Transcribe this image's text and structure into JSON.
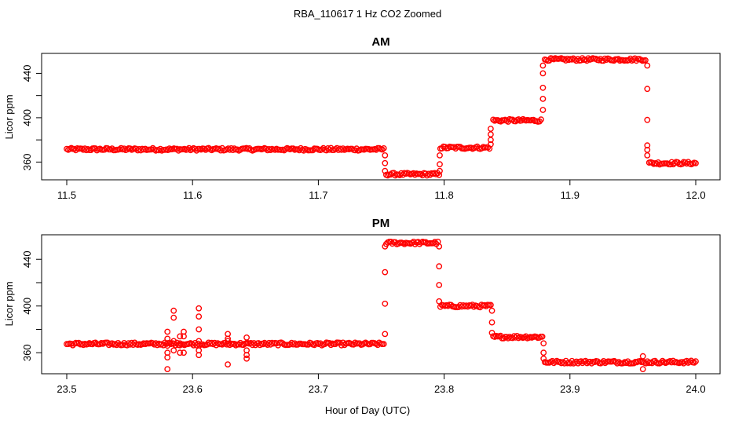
{
  "chart_data": {
    "type": "scatter",
    "title": "RBA_110617  1 Hz CO2 Zoomed",
    "xlabel": "Hour of Day (UTC)",
    "point_color": "#ff0000",
    "panels": [
      {
        "title": "AM",
        "ylabel": "Licor ppm",
        "xlim": [
          11.5,
          12.0
        ],
        "ylim": [
          344,
          458
        ],
        "xticks": [
          11.5,
          11.6,
          11.7,
          11.8,
          11.9,
          12.0
        ],
        "xtick_labels": [
          "11.5",
          "11.6",
          "11.7",
          "11.8",
          "11.9",
          "12.0"
        ],
        "yticks": [
          360,
          380,
          400,
          420,
          440
        ],
        "ytick_labels": [
          "360",
          "",
          "400",
          "",
          "440"
        ],
        "segments": [
          {
            "x0": 11.5,
            "x1": 11.752,
            "y": 371.5
          },
          {
            "x0": 11.754,
            "x1": 11.796,
            "y": 349
          },
          {
            "x0": 11.797,
            "x1": 11.836,
            "y": 373
          },
          {
            "x0": 11.839,
            "x1": 11.877,
            "y": 397.5
          },
          {
            "x0": 11.88,
            "x1": 11.96,
            "y": 452.5
          },
          {
            "x0": 11.963,
            "x1": 12.0,
            "y": 359
          }
        ],
        "transitions": [
          {
            "x": 11.753,
            "y": [
              366,
              359,
              352
            ]
          },
          {
            "x": 11.7965,
            "y": [
              352,
              358,
              366
            ]
          },
          {
            "x": 11.837,
            "y": [
              376,
              380,
              385,
              390
            ]
          },
          {
            "x": 11.8785,
            "y": [
              407,
              417,
              427,
              440,
              447
            ]
          },
          {
            "x": 11.9615,
            "y": [
              447,
              426,
              398,
              375,
              371,
              366
            ]
          }
        ]
      },
      {
        "title": "PM",
        "ylabel": "Licor ppm",
        "xlim": [
          23.5,
          24.0
        ],
        "ylim": [
          342,
          461
        ],
        "xticks": [
          23.5,
          23.6,
          23.7,
          23.8,
          23.9,
          24.0
        ],
        "xtick_labels": [
          "23.5",
          "23.6",
          "23.7",
          "23.8",
          "23.9",
          "24.0"
        ],
        "yticks": [
          360,
          380,
          400,
          420,
          440
        ],
        "ytick_labels": [
          "360",
          "",
          "400",
          "",
          "440"
        ],
        "segments": [
          {
            "x0": 23.5,
            "x1": 23.752,
            "y": 367.5
          },
          {
            "x0": 23.754,
            "x1": 23.795,
            "y": 454
          },
          {
            "x0": 23.797,
            "x1": 23.837,
            "y": 400
          },
          {
            "x0": 23.839,
            "x1": 23.878,
            "y": 373.5
          },
          {
            "x0": 23.88,
            "x1": 24.0,
            "y": 352
          }
        ],
        "transitions": [
          {
            "x": 23.753,
            "y": [
              376,
              402,
              429,
              451
            ]
          },
          {
            "x": 23.796,
            "y": [
              451,
              434,
              418,
              404
            ]
          },
          {
            "x": 23.838,
            "y": [
              396,
              386,
              377
            ]
          },
          {
            "x": 23.879,
            "y": [
              368,
              360,
              355
            ]
          }
        ],
        "spikes": [
          {
            "x": 23.58,
            "y": [
              346,
              356,
              360,
              366,
              372,
              378
            ]
          },
          {
            "x": 23.585,
            "y": [
              390,
              396,
              362,
              370
            ]
          },
          {
            "x": 23.59,
            "y": [
              360,
              368,
              374
            ]
          },
          {
            "x": 23.593,
            "y": [
              374,
              378,
              360
            ]
          },
          {
            "x": 23.605,
            "y": [
              398,
              391,
              380,
              370,
              362,
              358
            ]
          },
          {
            "x": 23.628,
            "y": [
              376,
              372,
              350,
              370
            ]
          },
          {
            "x": 23.643,
            "y": [
              373,
              368,
              358,
              355,
              362
            ]
          },
          {
            "x": 23.958,
            "y": [
              357,
              346
            ]
          }
        ]
      }
    ]
  }
}
